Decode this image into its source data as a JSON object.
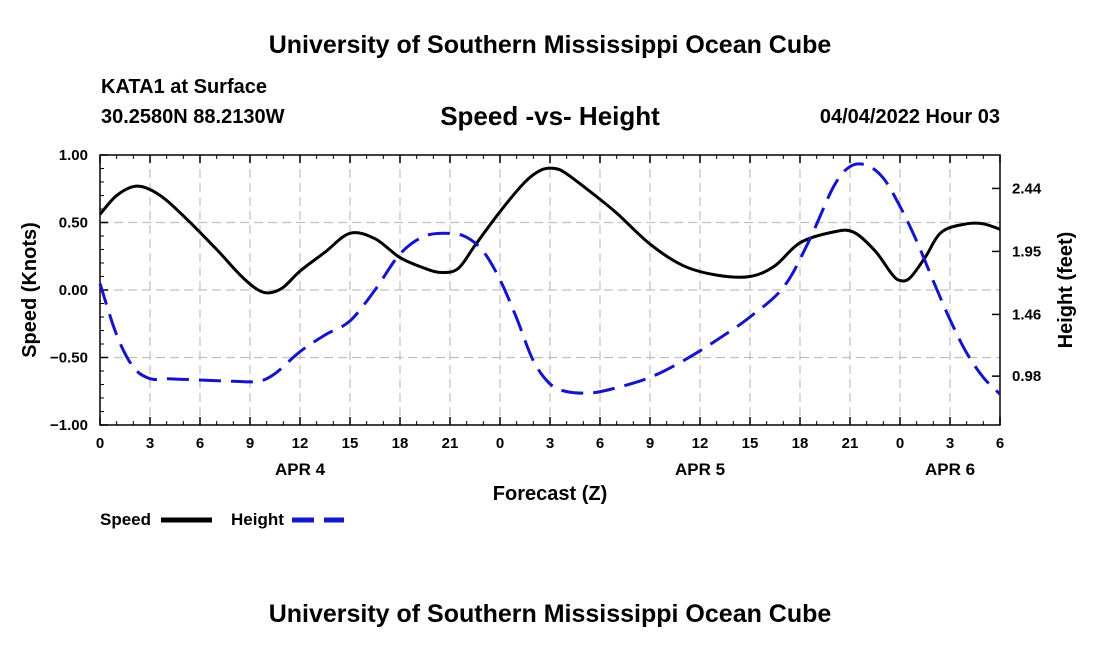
{
  "header": {
    "main_title": "University of Southern Mississippi Ocean Cube",
    "station": "KATA1 at Surface",
    "coords": "30.2580N  88.2130W",
    "chart_title": "Speed -vs- Height",
    "datetime": "04/04/2022 Hour 03"
  },
  "footer": {
    "title": "University of Southern Mississippi Ocean Cube"
  },
  "colors": {
    "speed": "#000000",
    "height": "#1414c8",
    "grid": "#c0c0c0"
  },
  "chart_data": {
    "type": "line",
    "title": "Speed -vs- Height",
    "xlabel": "Forecast (Z)",
    "ylabel": "Speed (Knots)",
    "y2label": "Height (feet)",
    "x_range": [
      0,
      54
    ],
    "ylim": [
      -1.0,
      1.0
    ],
    "y2lim": [
      0.6,
      2.7
    ],
    "y_ticks": [
      {
        "v": 1.0,
        "label": "1.00"
      },
      {
        "v": 0.5,
        "label": "0.50"
      },
      {
        "v": 0.0,
        "label": "0.00"
      },
      {
        "v": -0.5,
        "label": "−0.50"
      },
      {
        "v": -1.0,
        "label": "−1.00"
      }
    ],
    "y2_ticks": [
      {
        "v": 2.44,
        "label": "2.44"
      },
      {
        "v": 1.95,
        "label": "1.95"
      },
      {
        "v": 1.46,
        "label": "1.46"
      },
      {
        "v": 0.98,
        "label": "0.98"
      }
    ],
    "x_ticks": [
      {
        "h": 0,
        "label": "0"
      },
      {
        "h": 3,
        "label": "3"
      },
      {
        "h": 6,
        "label": "6"
      },
      {
        "h": 9,
        "label": "9"
      },
      {
        "h": 12,
        "label": "12"
      },
      {
        "h": 15,
        "label": "15"
      },
      {
        "h": 18,
        "label": "18"
      },
      {
        "h": 21,
        "label": "21"
      },
      {
        "h": 24,
        "label": "0"
      },
      {
        "h": 27,
        "label": "3"
      },
      {
        "h": 30,
        "label": "6"
      },
      {
        "h": 33,
        "label": "9"
      },
      {
        "h": 36,
        "label": "12"
      },
      {
        "h": 39,
        "label": "15"
      },
      {
        "h": 42,
        "label": "18"
      },
      {
        "h": 45,
        "label": "21"
      },
      {
        "h": 48,
        "label": "0"
      },
      {
        "h": 51,
        "label": "3"
      },
      {
        "h": 54,
        "label": "6"
      }
    ],
    "day_labels": [
      {
        "h": 12,
        "label": "APR 4"
      },
      {
        "h": 36,
        "label": "APR 5"
      },
      {
        "h": 51,
        "label": "APR 6"
      }
    ],
    "legend": {
      "speed": "Speed",
      "height": "Height"
    },
    "series": [
      {
        "name": "Speed",
        "axis": "left",
        "style": "solid",
        "x": [
          0,
          1,
          2.2,
          3.5,
          5,
          7,
          8.5,
          9.5,
          10.2,
          11,
          12,
          13.5,
          15,
          16.5,
          18,
          19.5,
          20.5,
          21.5,
          22.5,
          24,
          25.5,
          26.5,
          27.3,
          28,
          29.5,
          31,
          33,
          35,
          37,
          39,
          40.5,
          42,
          44,
          45.2,
          46.5,
          47.5,
          48,
          48.6,
          49.5,
          50.5,
          52,
          53,
          54
        ],
        "values": [
          0.56,
          0.7,
          0.77,
          0.71,
          0.55,
          0.3,
          0.1,
          0.0,
          -0.02,
          0.02,
          0.14,
          0.28,
          0.42,
          0.38,
          0.24,
          0.16,
          0.13,
          0.16,
          0.33,
          0.58,
          0.8,
          0.89,
          0.9,
          0.86,
          0.72,
          0.57,
          0.34,
          0.18,
          0.11,
          0.1,
          0.18,
          0.35,
          0.43,
          0.43,
          0.29,
          0.12,
          0.07,
          0.09,
          0.24,
          0.43,
          0.49,
          0.49,
          0.45
        ]
      },
      {
        "name": "Height",
        "axis": "right",
        "style": "dashed",
        "x": [
          0,
          1,
          2,
          3,
          4,
          6,
          8,
          9.5,
          10.5,
          12,
          13.5,
          15,
          16.5,
          18,
          19.5,
          21,
          22,
          23,
          24,
          25,
          26,
          27,
          28,
          29.5,
          31,
          33,
          35,
          37,
          39,
          41,
          42.5,
          44,
          45,
          46,
          47,
          48,
          49,
          50,
          51,
          52,
          53,
          54
        ],
        "values": [
          1.7,
          1.3,
          1.05,
          0.96,
          0.96,
          0.95,
          0.94,
          0.94,
          1.0,
          1.17,
          1.3,
          1.41,
          1.65,
          1.93,
          2.07,
          2.09,
          2.06,
          1.95,
          1.73,
          1.43,
          1.1,
          0.92,
          0.86,
          0.85,
          0.89,
          0.97,
          1.1,
          1.26,
          1.44,
          1.67,
          2.02,
          2.45,
          2.61,
          2.62,
          2.52,
          2.3,
          2.03,
          1.72,
          1.42,
          1.16,
          0.97,
          0.84
        ]
      }
    ]
  }
}
